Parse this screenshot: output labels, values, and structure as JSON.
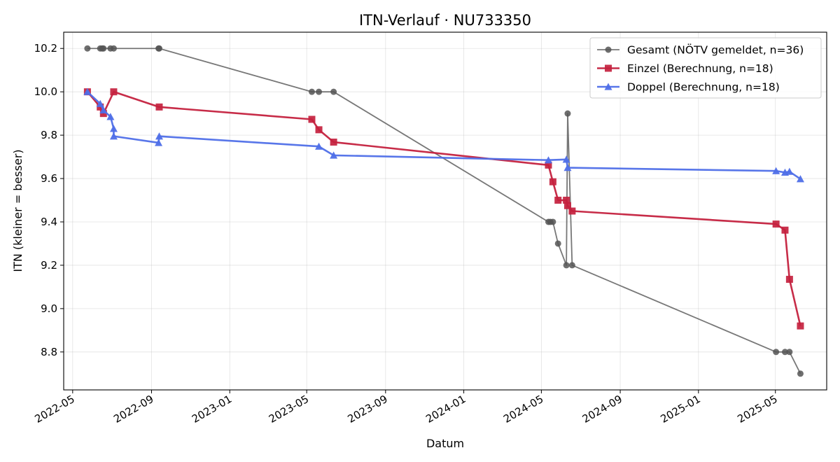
{
  "chart_data": {
    "type": "line",
    "title": "ITN-Verlauf · NU733350",
    "xlabel": "Datum",
    "ylabel": "ITN  (kleiner = besser)",
    "x_type": "date",
    "xlim": [
      "2022-04-17",
      "2025-07-20"
    ],
    "ylim": [
      8.625,
      10.275
    ],
    "x_ticks": [
      "2022-05",
      "2022-09",
      "2023-01",
      "2023-05",
      "2023-09",
      "2024-01",
      "2024-05",
      "2024-09",
      "2025-01",
      "2025-05"
    ],
    "y_ticks": [
      8.8,
      9.0,
      9.2,
      9.4,
      9.6,
      9.8,
      10.0,
      10.2
    ],
    "grid": true,
    "legend_position": "top-right",
    "series": [
      {
        "name": "Gesamt (NÖTV gemeldet, n=36)",
        "color": "#555555",
        "marker": "circle",
        "points": [
          {
            "x": "2022-05-24",
            "y": 10.2
          },
          {
            "x": "2022-06-13",
            "y": 10.2
          },
          {
            "x": "2022-06-16",
            "y": 10.2
          },
          {
            "x": "2022-06-18",
            "y": 10.2
          },
          {
            "x": "2022-06-29",
            "y": 10.2
          },
          {
            "x": "2022-07-04",
            "y": 10.2
          },
          {
            "x": "2022-09-12",
            "y": 10.2
          },
          {
            "x": "2022-09-13",
            "y": 10.2
          },
          {
            "x": "2023-05-09",
            "y": 10.0
          },
          {
            "x": "2023-05-20",
            "y": 10.0
          },
          {
            "x": "2023-06-12",
            "y": 10.0
          },
          {
            "x": "2024-05-12",
            "y": 9.4
          },
          {
            "x": "2024-05-15",
            "y": 9.4
          },
          {
            "x": "2024-05-19",
            "y": 9.4
          },
          {
            "x": "2024-05-27",
            "y": 9.3
          },
          {
            "x": "2024-06-09",
            "y": 9.2
          },
          {
            "x": "2024-06-11",
            "y": 9.9
          },
          {
            "x": "2024-06-18",
            "y": 9.2
          },
          {
            "x": "2025-05-02",
            "y": 8.8
          },
          {
            "x": "2025-05-16",
            "y": 8.8
          },
          {
            "x": "2025-05-23",
            "y": 8.8
          },
          {
            "x": "2025-06-09",
            "y": 8.7
          }
        ]
      },
      {
        "name": "Einzel (Berechnung, n=18)",
        "color": "#c4213e",
        "marker": "square",
        "points": [
          {
            "x": "2022-05-24",
            "y": 10.0
          },
          {
            "x": "2022-06-13",
            "y": 9.93
          },
          {
            "x": "2022-06-18",
            "y": 9.9
          },
          {
            "x": "2022-07-04",
            "y": 10.0
          },
          {
            "x": "2022-09-13",
            "y": 9.93
          },
          {
            "x": "2023-05-09",
            "y": 9.873
          },
          {
            "x": "2023-05-20",
            "y": 9.825
          },
          {
            "x": "2023-06-12",
            "y": 9.768
          },
          {
            "x": "2024-05-12",
            "y": 9.662
          },
          {
            "x": "2024-05-19",
            "y": 9.585
          },
          {
            "x": "2024-05-27",
            "y": 9.5
          },
          {
            "x": "2024-06-09",
            "y": 9.5
          },
          {
            "x": "2024-06-11",
            "y": 9.475
          },
          {
            "x": "2024-06-18",
            "y": 9.45
          },
          {
            "x": "2025-05-02",
            "y": 9.39
          },
          {
            "x": "2025-05-16",
            "y": 9.362
          },
          {
            "x": "2025-05-23",
            "y": 9.135
          },
          {
            "x": "2025-06-09",
            "y": 8.92
          }
        ]
      },
      {
        "name": "Doppel (Berechnung, n=18)",
        "color": "#4f6fe8",
        "marker": "triangle",
        "points": [
          {
            "x": "2022-05-24",
            "y": 10.0
          },
          {
            "x": "2022-06-13",
            "y": 9.945
          },
          {
            "x": "2022-06-18",
            "y": 9.915
          },
          {
            "x": "2022-06-29",
            "y": 9.885
          },
          {
            "x": "2022-07-04",
            "y": 9.83
          },
          {
            "x": "2022-07-04",
            "y": 9.795
          },
          {
            "x": "2022-09-12",
            "y": 9.765
          },
          {
            "x": "2022-09-13",
            "y": 9.795
          },
          {
            "x": "2023-05-20",
            "y": 9.748
          },
          {
            "x": "2023-06-12",
            "y": 9.707
          },
          {
            "x": "2024-05-12",
            "y": 9.685
          },
          {
            "x": "2024-06-09",
            "y": 9.688
          },
          {
            "x": "2024-06-11",
            "y": 9.65
          },
          {
            "x": "2025-05-02",
            "y": 9.635
          },
          {
            "x": "2025-05-16",
            "y": 9.628
          },
          {
            "x": "2025-05-23",
            "y": 9.632
          },
          {
            "x": "2025-06-09",
            "y": 9.598
          }
        ]
      }
    ]
  }
}
